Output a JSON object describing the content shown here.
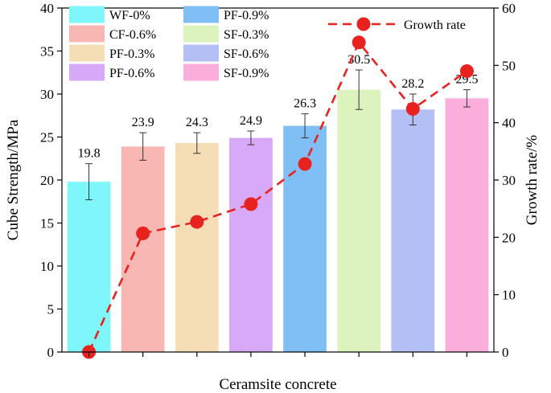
{
  "chart_data": {
    "type": "bar",
    "xlabel": "Ceramsite concrete",
    "ylabel": "Cube Strength/MPa",
    "y2label": "Growth rate/%",
    "ylim": [
      0,
      40
    ],
    "y2lim": [
      0,
      60
    ],
    "yticks": [
      "0",
      "5",
      "10",
      "15",
      "20",
      "25",
      "30",
      "35",
      "40"
    ],
    "y2ticks": [
      "0",
      "10",
      "20",
      "30",
      "40",
      "50",
      "60"
    ],
    "categories": [
      "WF-0%",
      "CF-0.6%",
      "PF-0.3%",
      "PF-0.6%",
      "PF-0.9%",
      "SF-0.3%",
      "SF-0.6%",
      "SF-0.9%"
    ],
    "values": [
      19.8,
      23.9,
      24.3,
      24.9,
      26.3,
      30.5,
      28.2,
      29.5
    ],
    "value_labels": [
      "19.8",
      "23.9",
      "24.3",
      "24.9",
      "26.3",
      "30.5",
      "28.2",
      "29.5"
    ],
    "errors": [
      2.1,
      1.6,
      1.2,
      0.8,
      1.4,
      2.3,
      1.8,
      1.0
    ],
    "colors": [
      "#7ff6f9",
      "#f8b7b3",
      "#f5deb6",
      "#d7a9f7",
      "#80bff5",
      "#ddf3bd",
      "#b4bff5",
      "#fbaedb"
    ],
    "line_series": {
      "name": "Growth rate",
      "axis": "right",
      "values": [
        0,
        20.7,
        22.7,
        25.8,
        32.8,
        54.0,
        42.4,
        49.0
      ],
      "color": "#e8231f"
    },
    "legend": [
      "WF-0%",
      "PF-0.9%",
      "CF-0.6%",
      "SF-0.3%",
      "PF-0.3%",
      "SF-0.6%",
      "PF-0.6%",
      "SF-0.9%"
    ]
  }
}
